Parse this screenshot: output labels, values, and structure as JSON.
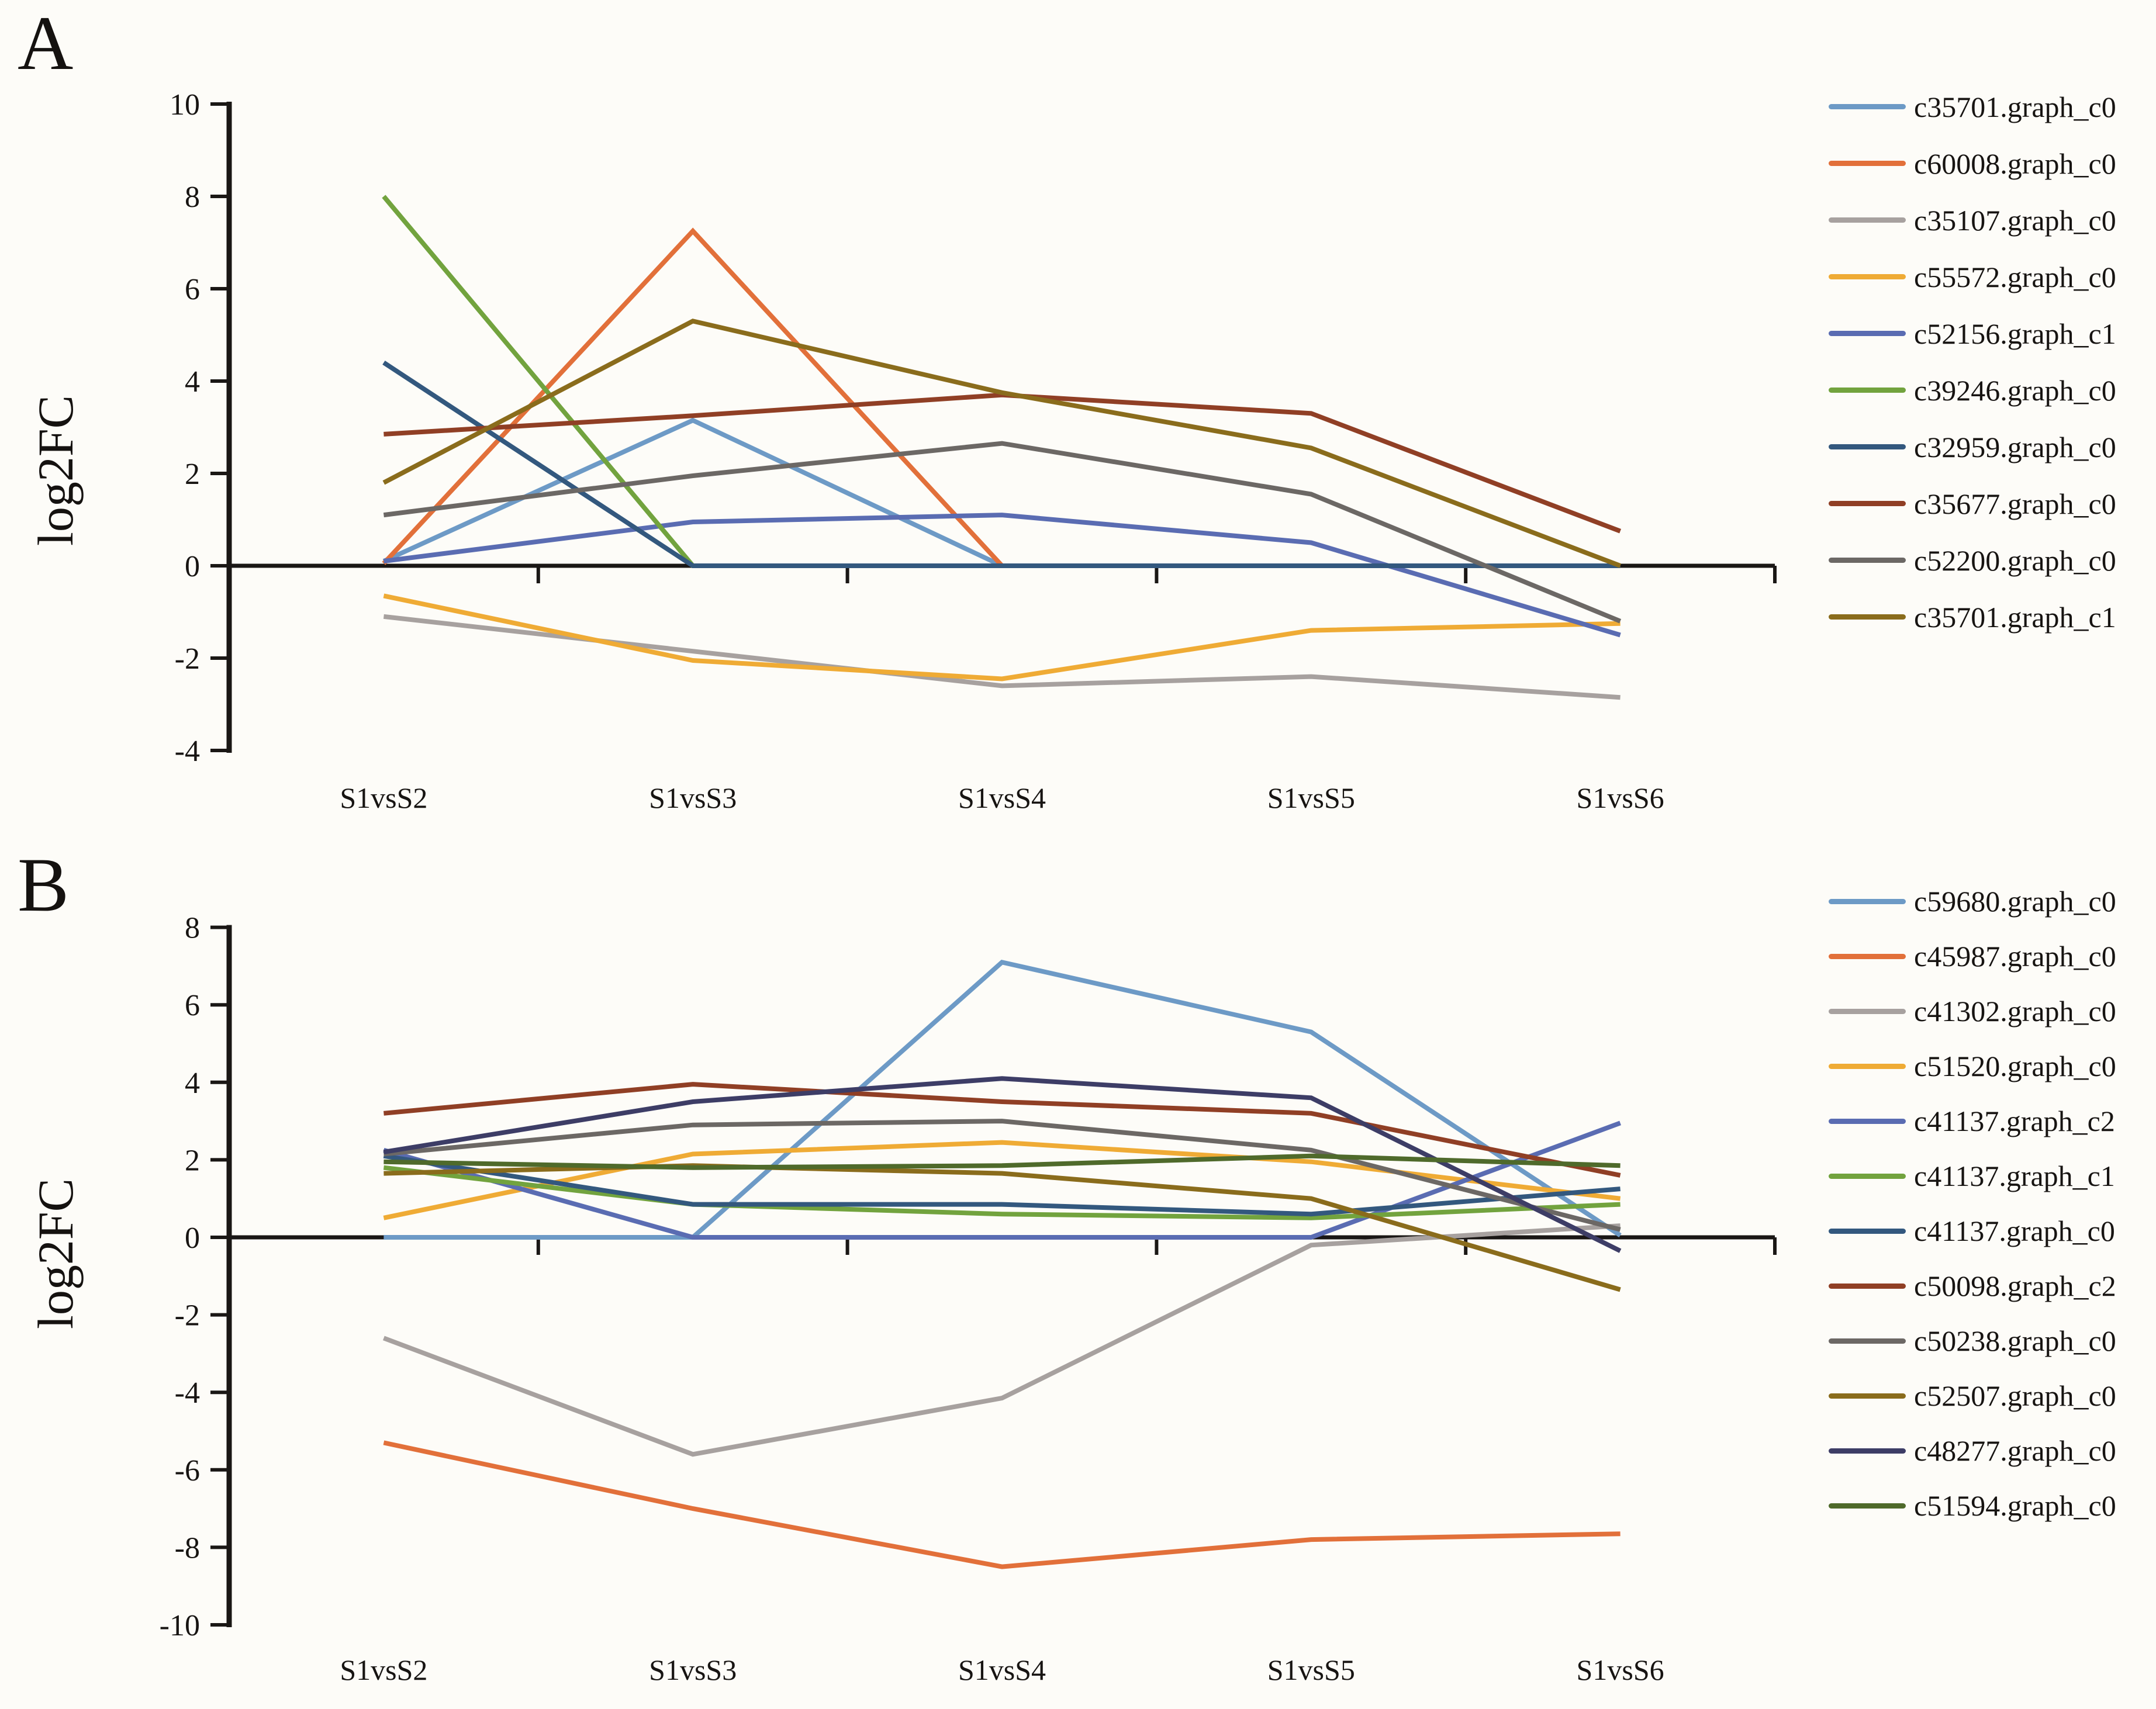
{
  "figure": {
    "background": "#fdfcf8",
    "axis_color": "#1a1715",
    "panel_a_letter": "A",
    "panel_b_letter": "B"
  },
  "chart_data": [
    {
      "id": "A",
      "type": "line",
      "panel_label": "A",
      "title": "",
      "xlabel": "",
      "ylabel": "log2FC",
      "categories": [
        "S1vsS2",
        "S1vsS3",
        "S1vsS4",
        "S1vsS5",
        "S1vsS6"
      ],
      "ylim": [
        -4,
        10
      ],
      "yticks": [
        10,
        8,
        6,
        4,
        2,
        0,
        -2,
        -4
      ],
      "grid": false,
      "legend_position": "right",
      "series": [
        {
          "name": "c35701.graph_c0",
          "color": "#6d9ac6",
          "values": [
            0.1,
            3.15,
            0,
            0,
            0
          ]
        },
        {
          "name": "c60008.graph_c0",
          "color": "#e2703a",
          "values": [
            0.05,
            7.25,
            0,
            0,
            0
          ]
        },
        {
          "name": "c35107.graph_c0",
          "color": "#a7a19f",
          "values": [
            -1.1,
            -1.85,
            -2.6,
            -2.4,
            -2.85
          ]
        },
        {
          "name": "c55572.graph_c0",
          "color": "#efab35",
          "values": [
            -0.65,
            -2.05,
            -2.45,
            -1.4,
            -1.25
          ]
        },
        {
          "name": "c52156.graph_c1",
          "color": "#5a6cb2",
          "values": [
            0.1,
            0.95,
            1.1,
            0.5,
            -1.5
          ]
        },
        {
          "name": "c39246.graph_c0",
          "color": "#72a33e",
          "values": [
            8,
            0,
            0,
            0,
            0
          ]
        },
        {
          "name": "c32959.graph_c0",
          "color": "#33587e",
          "values": [
            4.4,
            0,
            0,
            0,
            0
          ]
        },
        {
          "name": "c35677.graph_c0",
          "color": "#903f25",
          "values": [
            2.85,
            3.25,
            3.7,
            3.3,
            0.75
          ]
        },
        {
          "name": "c52200.graph_c0",
          "color": "#6c6865",
          "values": [
            1.1,
            1.95,
            2.65,
            1.55,
            -1.2
          ]
        },
        {
          "name": "c35701.graph_c1",
          "color": "#8a6c1c",
          "values": [
            1.8,
            5.3,
            3.75,
            2.55,
            0
          ]
        }
      ]
    },
    {
      "id": "B",
      "type": "line",
      "panel_label": "B",
      "title": "",
      "xlabel": "",
      "ylabel": "log2FC",
      "categories": [
        "S1vsS2",
        "S1vsS3",
        "S1vsS4",
        "S1vsS5",
        "S1vsS6"
      ],
      "ylim": [
        -10,
        8
      ],
      "yticks": [
        8,
        6,
        4,
        2,
        0,
        -2,
        -4,
        -6,
        -8,
        -10
      ],
      "grid": false,
      "legend_position": "right",
      "series": [
        {
          "name": "c59680.graph_c0",
          "color": "#6d9ac6",
          "values": [
            0,
            0,
            7.1,
            5.3,
            0.05
          ]
        },
        {
          "name": "c45987.graph_c0",
          "color": "#e2703a",
          "values": [
            -5.3,
            -7.0,
            -8.5,
            -7.8,
            -7.65
          ]
        },
        {
          "name": "c41302.graph_c0",
          "color": "#a7a19f",
          "values": [
            -2.6,
            -5.6,
            -4.15,
            -0.2,
            0.3
          ]
        },
        {
          "name": "c51520.graph_c0",
          "color": "#efab35",
          "values": [
            0.5,
            2.15,
            2.45,
            1.95,
            1.0
          ]
        },
        {
          "name": "c41137.graph_c2",
          "color": "#5a6cb2",
          "values": [
            2.25,
            0,
            0,
            0,
            2.95
          ]
        },
        {
          "name": "c41137.graph_c1",
          "color": "#72a33e",
          "values": [
            1.8,
            0.85,
            0.6,
            0.5,
            0.85
          ]
        },
        {
          "name": "c41137.graph_c0",
          "color": "#33587e",
          "values": [
            2.1,
            0.85,
            0.85,
            0.6,
            1.25
          ]
        },
        {
          "name": "c50098.graph_c2",
          "color": "#903f25",
          "values": [
            3.2,
            3.95,
            3.5,
            3.2,
            1.6
          ]
        },
        {
          "name": "c50238.graph_c0",
          "color": "#6c6865",
          "values": [
            2.15,
            2.9,
            3.0,
            2.25,
            0.2
          ]
        },
        {
          "name": "c52507.graph_c0",
          "color": "#8a6c1c",
          "values": [
            1.65,
            1.85,
            1.65,
            1.0,
            -1.35
          ]
        },
        {
          "name": "c48277.graph_c0",
          "color": "#3d3d66",
          "values": [
            2.2,
            3.5,
            4.1,
            3.6,
            -0.35
          ]
        },
        {
          "name": "c51594.graph_c0",
          "color": "#4f6a2b",
          "values": [
            1.95,
            1.8,
            1.85,
            2.1,
            1.85
          ]
        }
      ]
    }
  ]
}
